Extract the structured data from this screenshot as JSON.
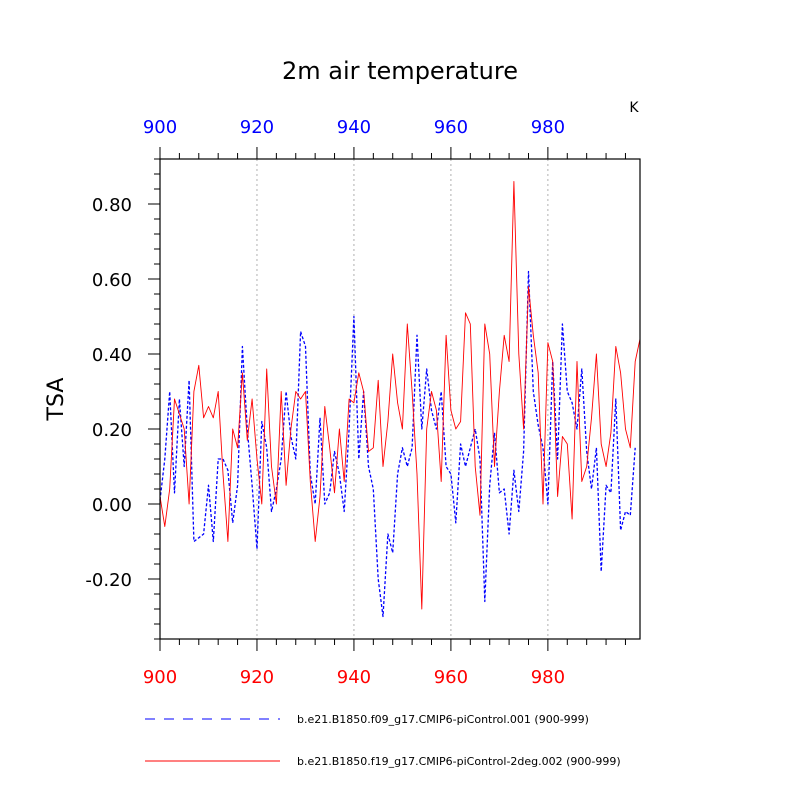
{
  "chart_data": {
    "type": "line",
    "title": "2m air temperature",
    "ylabel": "TSA",
    "units": "K",
    "xlim": [
      900,
      999
    ],
    "ylim": [
      -0.36,
      0.92
    ],
    "x_ticks": [
      900,
      920,
      940,
      960,
      980
    ],
    "x_tick_labels": [
      "900",
      "920",
      "940",
      "960",
      "980"
    ],
    "y_ticks": [
      -0.2,
      0.0,
      0.2,
      0.4,
      0.6,
      0.8
    ],
    "y_tick_labels": [
      "-0.20",
      "0.00",
      "0.20",
      "0.40",
      "0.60",
      "0.80"
    ],
    "top_axis_color": "#0000ff",
    "bottom_axis_color": "#ff0000",
    "grid": "vertical dotted at major x ticks",
    "series": [
      {
        "name": "b.e21.B1850.f09_g17.CMIP6-piControl.001 (900-999)",
        "color": "#0000ff",
        "style": "dashed",
        "x_start": 900,
        "values": [
          0.01,
          0.12,
          0.3,
          0.03,
          0.28,
          0.1,
          0.33,
          -0.1,
          -0.09,
          -0.08,
          0.05,
          -0.1,
          0.12,
          0.12,
          0.09,
          -0.05,
          0.05,
          0.42,
          0.2,
          0.05,
          -0.12,
          0.22,
          0.15,
          -0.02,
          0.04,
          0.12,
          0.3,
          0.18,
          0.12,
          0.46,
          0.42,
          0.08,
          0.0,
          0.23,
          0.0,
          0.03,
          0.14,
          0.08,
          -0.02,
          0.2,
          0.5,
          0.12,
          0.3,
          0.1,
          0.04,
          -0.2,
          -0.3,
          -0.08,
          -0.13,
          0.08,
          0.15,
          0.1,
          0.15,
          0.45,
          0.2,
          0.36,
          0.25,
          0.2,
          0.3,
          0.1,
          0.08,
          -0.05,
          0.16,
          0.1,
          0.15,
          0.2,
          0.12,
          -0.26,
          0.05,
          0.19,
          0.03,
          0.04,
          -0.08,
          0.09,
          -0.02,
          0.14,
          0.62,
          0.3,
          0.21,
          0.15,
          0.0,
          0.38,
          0.12,
          0.48,
          0.3,
          0.27,
          0.2,
          0.36,
          0.14,
          0.04,
          0.15,
          -0.18,
          0.05,
          0.03,
          0.28,
          -0.07,
          -0.02,
          -0.03,
          0.15
        ]
      },
      {
        "name": "b.e21.B1850.f19_g17.CMIP6-piControl-2deg.002 (900-999)",
        "color": "#ff0000",
        "style": "solid",
        "x_start": 900,
        "values": [
          0.02,
          -0.06,
          0.04,
          0.28,
          0.24,
          0.2,
          0.0,
          0.3,
          0.37,
          0.23,
          0.26,
          0.23,
          0.3,
          0.08,
          -0.1,
          0.2,
          0.15,
          0.35,
          0.17,
          0.28,
          0.12,
          0.0,
          0.36,
          0.1,
          0.0,
          0.3,
          0.05,
          0.2,
          0.3,
          0.28,
          0.3,
          0.06,
          -0.1,
          0.02,
          0.26,
          0.15,
          0.03,
          0.2,
          0.06,
          0.28,
          0.27,
          0.35,
          0.3,
          0.14,
          0.15,
          0.33,
          0.1,
          0.22,
          0.4,
          0.27,
          0.2,
          0.48,
          0.3,
          0.08,
          -0.28,
          0.2,
          0.3,
          0.25,
          0.06,
          0.45,
          0.25,
          0.2,
          0.22,
          0.51,
          0.48,
          0.1,
          -0.03,
          0.48,
          0.4,
          0.1,
          0.3,
          0.45,
          0.38,
          0.86,
          0.4,
          0.2,
          0.58,
          0.45,
          0.35,
          0.0,
          0.43,
          0.38,
          0.02,
          0.18,
          0.16,
          -0.04,
          0.38,
          0.06,
          0.1,
          0.23,
          0.4,
          0.16,
          0.1,
          0.19,
          0.42,
          0.35,
          0.2,
          0.15,
          0.38,
          0.44
        ]
      }
    ]
  }
}
